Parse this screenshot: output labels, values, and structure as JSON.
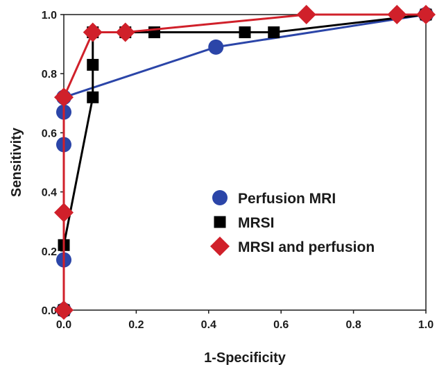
{
  "chart_data": {
    "type": "line",
    "title": "",
    "xlabel": "1-Specificity",
    "ylabel": "Sensitivity",
    "xlim": [
      0,
      1
    ],
    "ylim": [
      0,
      1
    ],
    "x_ticks": [
      "0.0",
      "0.2",
      "0.4",
      "0.6",
      "0.8",
      "1.0"
    ],
    "y_ticks": [
      "0.0",
      "0.2",
      "0.4",
      "0.6",
      "0.8",
      "1.0"
    ],
    "grid": false,
    "legend_position": "lower-right",
    "series": [
      {
        "name": "Perfusion MRI",
        "color": "#2b45a8",
        "marker": "circle",
        "points": [
          [
            0,
            0
          ],
          [
            0,
            0.17
          ],
          [
            0,
            0.56
          ],
          [
            0,
            0.67
          ],
          [
            0,
            0.72
          ],
          [
            0.42,
            0.89
          ],
          [
            1.0,
            1.0
          ]
        ]
      },
      {
        "name": "MRSI",
        "color": "#000000",
        "marker": "square",
        "points": [
          [
            0,
            0
          ],
          [
            0,
            0.22
          ],
          [
            0.08,
            0.72
          ],
          [
            0.08,
            0.83
          ],
          [
            0.08,
            0.94
          ],
          [
            0.17,
            0.94
          ],
          [
            0.25,
            0.94
          ],
          [
            0.5,
            0.94
          ],
          [
            0.58,
            0.94
          ],
          [
            1.0,
            1.0
          ]
        ]
      },
      {
        "name": "MRSI and perfusion",
        "color": "#d0202a",
        "marker": "diamond",
        "points": [
          [
            0,
            0
          ],
          [
            0,
            0.33
          ],
          [
            0,
            0.72
          ],
          [
            0.08,
            0.94
          ],
          [
            0.17,
            0.94
          ],
          [
            0.67,
            1.0
          ],
          [
            0.92,
            1.0
          ],
          [
            1.0,
            1.0
          ]
        ]
      }
    ]
  }
}
